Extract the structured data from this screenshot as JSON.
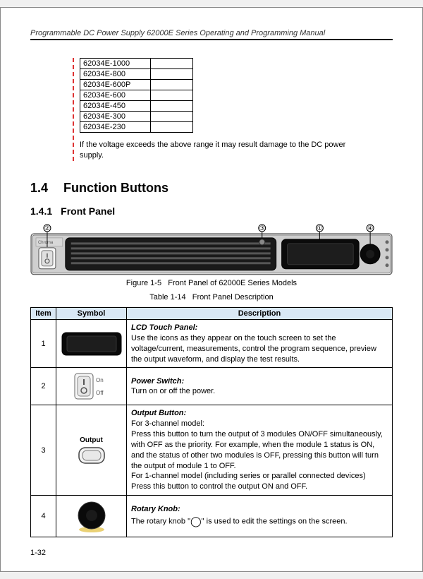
{
  "header": {
    "title": "Programmable DC Power Supply 62000E Series Operating and Programming Manual",
    "line_color": "#000000"
  },
  "models": [
    "62034E-1000",
    "62034E-800",
    "62034E-600P",
    "62034E-600",
    "62034E-450",
    "62034E-300",
    "62034E-230"
  ],
  "warning_text": "If the voltage exceeds the above range it may result damage to the DC power supply.",
  "section": {
    "num": "1.4",
    "title": "Function Buttons"
  },
  "subsection": {
    "num": "1.4.1",
    "title": "Front Panel"
  },
  "figure_caption": {
    "label": "Figure 1-5",
    "text": "Front Panel of 62000E Series Models"
  },
  "table_caption": {
    "label": "Table 1-14",
    "text": "Front Panel Description"
  },
  "columns": {
    "item": "Item",
    "symbol": "Symbol",
    "description": "Description"
  },
  "callouts": [
    "①",
    "②",
    "③",
    "④"
  ],
  "panel": {
    "brand": "Chroma",
    "switch_on": "On",
    "switch_off": "Off"
  },
  "rows": [
    {
      "item": "1",
      "symbol_label": "",
      "title": "LCD Touch Panel:",
      "body": "Use the icons as they appear on the touch screen to set the voltage/current, measurements, control the program sequence, preview the output waveform, and display the test results."
    },
    {
      "item": "2",
      "symbol_label_top": "On",
      "symbol_label_bottom": "Off",
      "title": "Power Switch:",
      "body": "Turn on or off the power."
    },
    {
      "item": "3",
      "symbol_label": "Output",
      "title": "Output Button:",
      "body": "For 3-channel model:\nPress this button to turn the output of 3 modules ON/OFF simultaneously, with OFF as the priority. For example, when the module 1 status is ON, and the status of other two modules is OFF, pressing this button will turn the output of module 1 to OFF.\nFor 1-channel model (including series or parallel connected devices)\nPress this button to control the output ON and OFF."
    },
    {
      "item": "4",
      "symbol_label": "",
      "title": "Rotary Knob:",
      "body_pre": "The rotary knob \"",
      "body_post": "\" is used to edit the settings on the screen.",
      "knob_glyph": "◯"
    }
  ],
  "page_number": "1-32",
  "colors": {
    "table_header_bg": "#d9e8f5",
    "warn_dash": "#d33"
  }
}
